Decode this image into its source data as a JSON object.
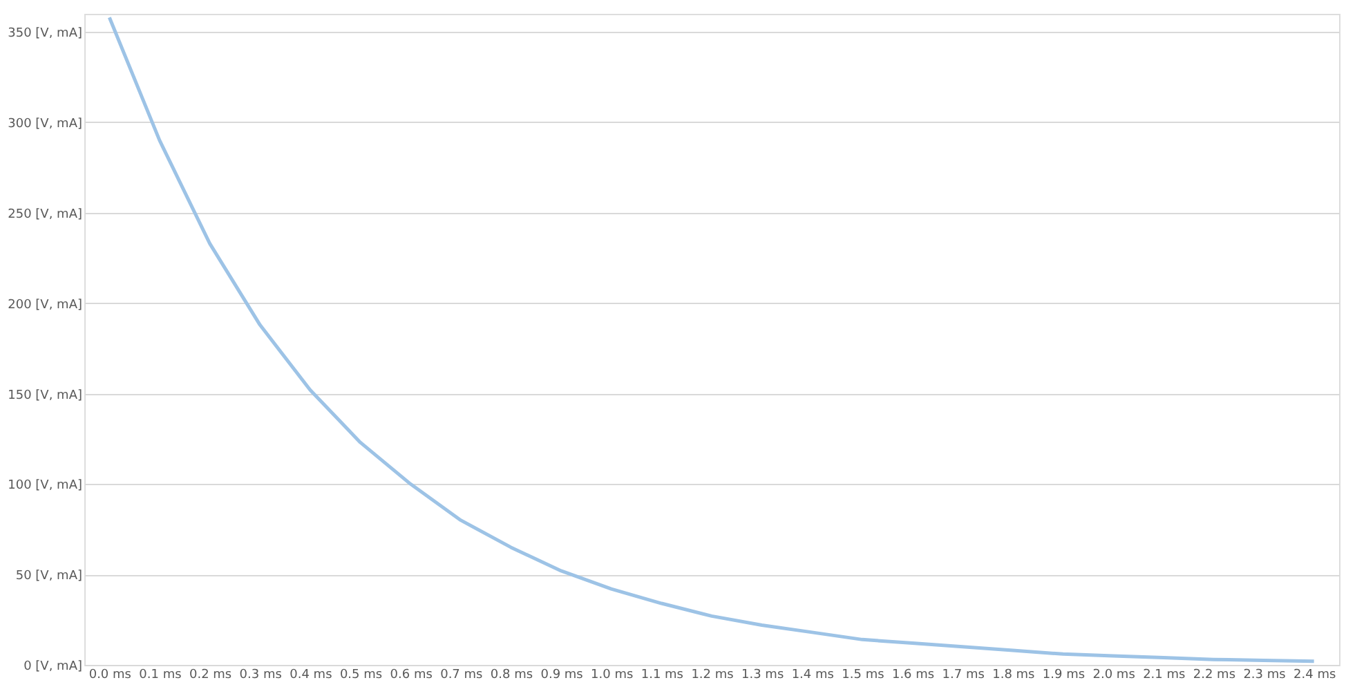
{
  "chart_data": {
    "type": "line",
    "categories": [
      "0.0 ms",
      "0.1 ms",
      "0.2 ms",
      "0.3 ms",
      "0.4 ms",
      "0.5 ms",
      "0.6 ms",
      "0.7 ms",
      "0.8 ms",
      "0.9 ms",
      "1.0 ms",
      "1.1 ms",
      "1.2 ms",
      "1.3 ms",
      "1.4 ms",
      "1.5 ms",
      "1.6 ms",
      "1.7 ms",
      "1.8 ms",
      "1.9 ms",
      "2.0 ms",
      "2.1 ms",
      "2.2 ms",
      "2.3 ms",
      "2.4 ms"
    ],
    "series": [
      {
        "color": "#9dc3e6",
        "values": [
          358,
          290,
          233,
          188,
          152,
          123,
          100,
          80,
          65,
          52,
          42,
          34,
          27,
          22,
          18,
          14,
          12,
          10,
          8,
          6,
          5,
          4,
          3,
          2.5,
          2
        ]
      }
    ],
    "ylim": [
      0,
      360
    ],
    "yticks": [
      {
        "value": 0,
        "label": "0 [V, mA]"
      },
      {
        "value": 50,
        "label": "50 [V, mA]"
      },
      {
        "value": 100,
        "label": "100 [V, mA]"
      },
      {
        "value": 150,
        "label": "150 [V, mA]"
      },
      {
        "value": 200,
        "label": "200 [V, mA]"
      },
      {
        "value": 250,
        "label": "250 [V, mA]"
      },
      {
        "value": 300,
        "label": "300 [V, mA]"
      },
      {
        "value": 350,
        "label": "350 [V, mA]"
      }
    ],
    "grid": "y",
    "marker": "none",
    "line_style": "solid"
  }
}
